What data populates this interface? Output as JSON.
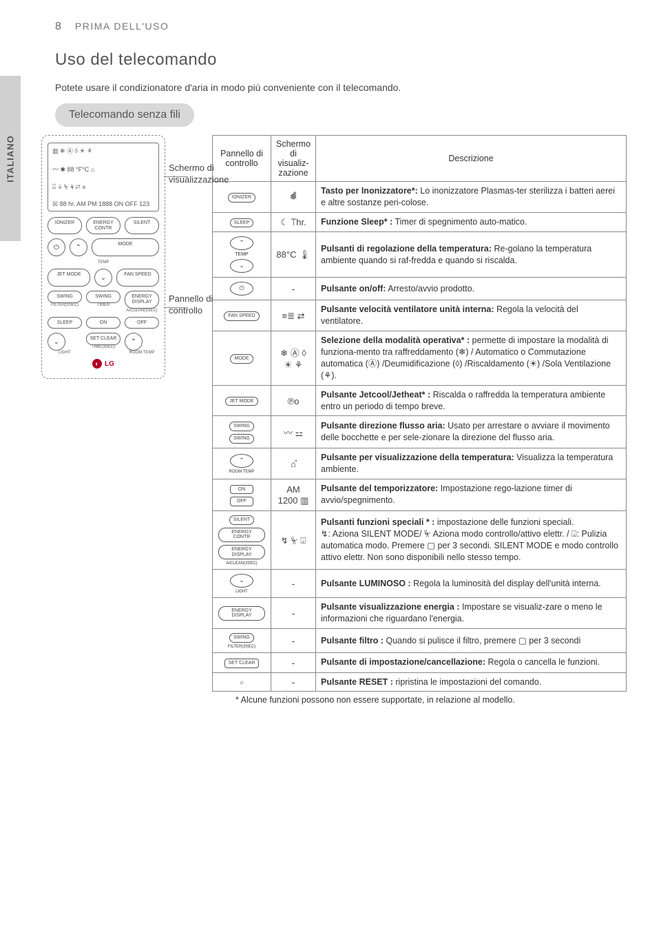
{
  "page_number": "8",
  "section_label": "PRIMA DELL'USO",
  "sidebar_text": "ITALIANO",
  "title": "Uso del telecomando",
  "intro": "Potete usare il condizionatore d'aria in modo più conveniente con il telecomando.",
  "pill": "Telecomando senza fili",
  "pointer_display": "Schermo di visualizzazione",
  "pointer_panel": "Pannello di controllo",
  "remote": {
    "top_icons": "▥ ❄ Ⓐ ◊ ☀ ⚘",
    "disp_line1": "〰 ✱ 88 °F°C ⌂",
    "disp_line2": "⍗ ⏚ ⏧ ⚘ ⇄ ≋",
    "disp_line3": "☒ 88 hr. AM PM 1888 ON OFF 123",
    "row1": [
      "IONIZER",
      "ENERGY CONTR",
      "SILENT"
    ],
    "row2_left": "⏻",
    "row2_right": "MODE",
    "row2_mid": "⌃",
    "temp_label": "TEMP",
    "row3": [
      "JET MODE",
      "⌄",
      "FAN SPEED"
    ],
    "row4": [
      "SWING",
      "SWING",
      "ENERGY DISPLAY"
    ],
    "row4_sub": [
      "FILTER(3SEC)",
      "TIMER",
      "A/CLEAN(3SEC)"
    ],
    "row5": [
      "SLEEP",
      "ON",
      "OFF"
    ],
    "row6": [
      "⌄",
      "SET CLEAR",
      "⌃"
    ],
    "row6_sub": [
      "LIGHT",
      "TIME(3SEC)",
      "ROOM TEMP"
    ],
    "logo": "LG"
  },
  "table": {
    "head_panel": "Pannello di controllo",
    "head_screen": "Schermo di visualiz-zazione",
    "head_desc": "Descrizione",
    "rows": [
      {
        "panel_html": "ionizer",
        "screen": "❅̊",
        "desc": "<b>Tasto per Inonizzatore*:</b> Lo inonizzatore Plasmas-ter sterilizza i batteri aerei e altre sostanze peri-colose."
      },
      {
        "panel_html": "sleep",
        "screen": "☾ ⟙hr.",
        "desc": "<b>Funzione Sleep* :</b> Timer di spegnimento auto-matico."
      },
      {
        "panel_html": "temp",
        "screen": "88°C 🌡",
        "desc": "<b>Pulsanti di regolazione della temperatura:</b> Re-golano la temperatura ambiente quando si raf-fredda e quando si riscalda."
      },
      {
        "panel_html": "power",
        "screen": "-",
        "desc": "<b>Pulsante on/off:</b> Arresto/avvio prodotto."
      },
      {
        "panel_html": "fan",
        "screen": "≡≣ ⇄",
        "desc": "<b>Pulsante velocità ventilatore unità interna:</b> Regola la velocità del ventilatore."
      },
      {
        "panel_html": "mode",
        "screen": "❄ Ⓐ ◊ ☀ ⚘",
        "desc": "<b>Selezione della modalità operativa* :</b> permette di impostare la modalità di funziona-mento tra raffreddamento (❄) / Automatico o Commutazione automatica (Ⓐ) /Deumidificazione (◊) /Riscaldamento (☀) /Sola Ventilazione (⚘)."
      },
      {
        "panel_html": "jet",
        "screen": "℗o",
        "desc": "<b>Pulsante Jetcool/Jetheat* :</b> Riscalda o raffredda la temperatura ambiente entro un periodo di tempo breve."
      },
      {
        "panel_html": "swing",
        "screen": "〰 ⚍",
        "desc": "<b>Pulsante direzione flusso aria:</b> Usato per arrestare o avviare il movimento delle bocchette e per sele-zionare la direzione del flusso aria."
      },
      {
        "panel_html": "roomtemp",
        "screen": "⌂̊",
        "desc": "<b>Pulsante per visualizzazione della temperatura:</b> Visualizza la temperatura ambiente."
      },
      {
        "panel_html": "onoff",
        "screen": "AM 1200 ▥",
        "desc": "<b>Pulsante del temporizzatore:</b> Impostazione rego-lazione timer di avvio/spegnimento."
      },
      {
        "panel_html": "special",
        "screen": "↯ ⏧ ⍗",
        "desc": "<b>Pulsanti funzioni speciali * :</b> impostazione delle funzioni speciali.<br>↯: Aziona SILENT MODE/ ⏧ Aziona modo controllo/attivo elettr. / ⍗: Pulizia automatica modo. Premere ▢ per 3 secondi. SILENT MODE e modo controllo attivo elettr. Non sono disponibili nello stesso tempo."
      },
      {
        "panel_html": "light",
        "screen": "-",
        "desc": "<b>Pulsante LUMINOSO :</b> Regola la luminosità del display dell'unità interna."
      },
      {
        "panel_html": "energydisp",
        "screen": "-",
        "desc": "<b>Pulsante visualizzazione energia :</b> Impostare se visualiz-zare o meno le informazioni che riguardano l'energia."
      },
      {
        "panel_html": "filter",
        "screen": "-",
        "desc": "<b>Pulsante filtro :</b> Quando si pulisce il filtro, premere ▢ per 3 secondi"
      },
      {
        "panel_html": "setclear",
        "screen": "-",
        "desc": "<b>Pulsante di impostazione/cancellazione:</b> Regola o cancella le funzioni."
      },
      {
        "panel_html": "reset",
        "screen": "-",
        "desc": "<b>Pulsante RESET :</b> ripristina le impostazioni del comando."
      }
    ]
  },
  "footnote": "* Alcune funzioni possono non essere supportate, in relazione al modello.",
  "panel_icons": {
    "ionizer": "IONIZER",
    "sleep": "SLEEP",
    "fan": "FAN SPEED",
    "mode": "MODE",
    "jet": "JET MODE",
    "silent": "SILENT",
    "energyctr": "ENERGY CONTR",
    "energydisp": "ENERGY DISPLAY",
    "aclean": "A/CLEAN(3SEC)",
    "light": "LIGHT",
    "roomtemp": "ROOM TEMP",
    "on": "ON",
    "off": "OFF",
    "setclear": "SET CLEAR",
    "swing": "SWING",
    "filter": "FILTER(3SEC)",
    "temp_up": "⌃",
    "temp_dn": "⌄",
    "temp_lbl": "TEMP",
    "power": "⏻",
    "reset": "○"
  }
}
